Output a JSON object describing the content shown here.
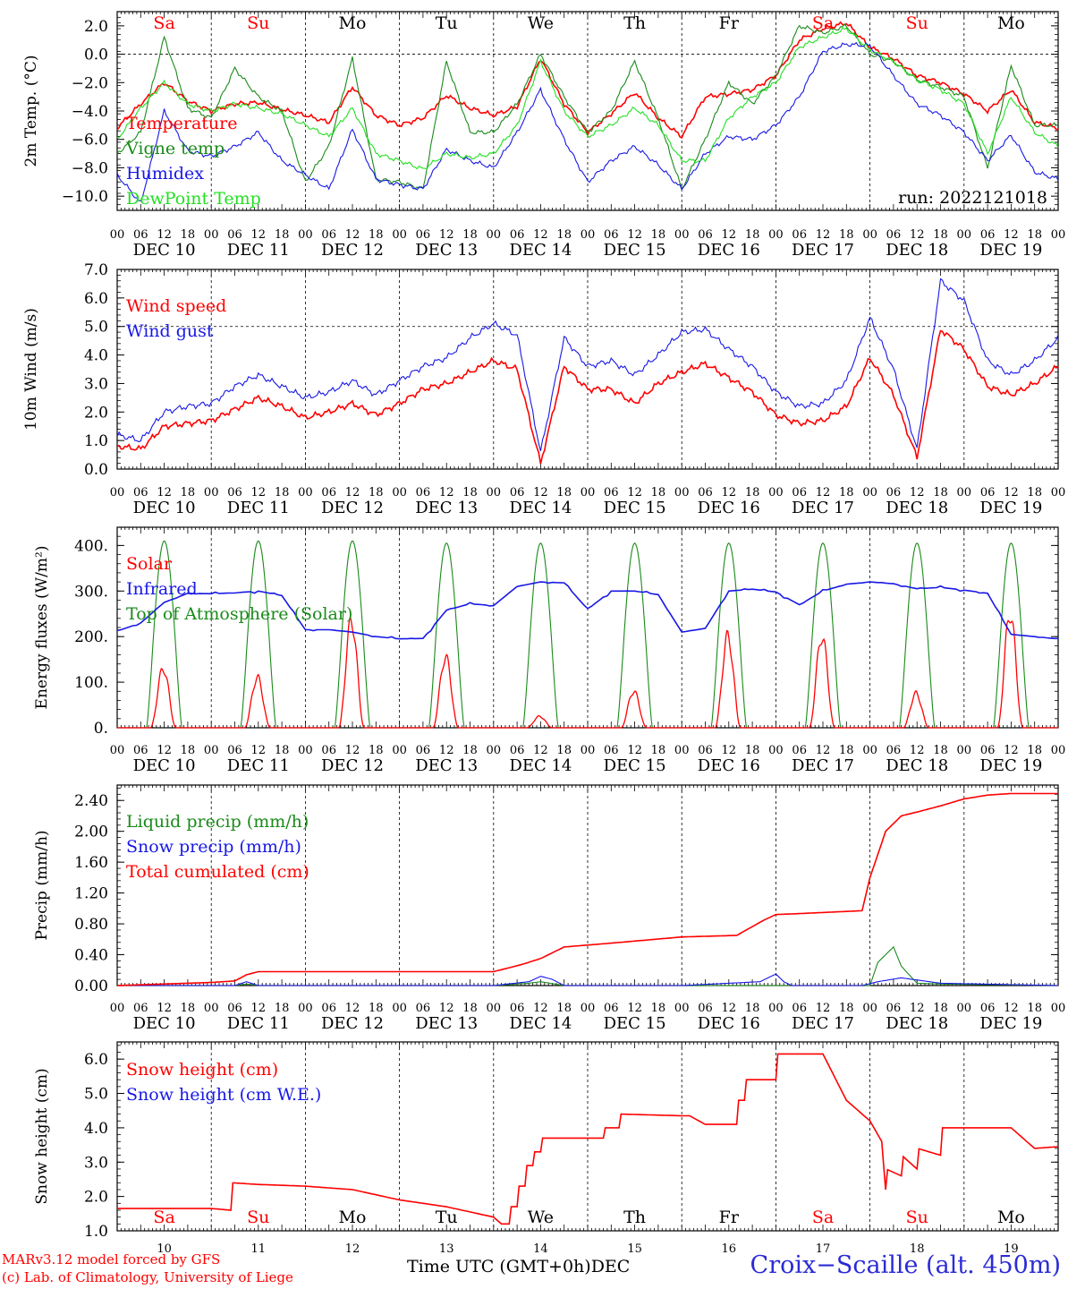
{
  "run_label": "run: 2022121018",
  "time_axis": {
    "hour_ticks": [
      "00",
      "06",
      "12",
      "18"
    ],
    "date_labels": [
      "DEC 10",
      "DEC 11",
      "DEC 12",
      "DEC 13",
      "DEC 14",
      "DEC 15",
      "DEC 16",
      "DEC 17",
      "DEC 18",
      "DEC 19"
    ],
    "weekdays": [
      "Sa",
      "Su",
      "Mo",
      "Tu",
      "We",
      "Th",
      "Fr",
      "Sa",
      "Su",
      "Mo"
    ],
    "weekend_flags": [
      true,
      true,
      false,
      false,
      false,
      false,
      false,
      true,
      true,
      false
    ],
    "day_numbers": [
      "10",
      "11",
      "12",
      "13",
      "14",
      "15",
      "16",
      "17",
      "18",
      "19"
    ],
    "xlabel": "Time UTC (GMT+0h)",
    "month": "DEC"
  },
  "footer": {
    "credit_line1": "MARv3.12 model forced by GFS",
    "credit_line2": "(c) Lab. of Climatology, University of Liege",
    "station": "Croix−Scaille (alt. 450m)"
  },
  "colors": {
    "red": "#ff0000",
    "blue": "#1818e6",
    "dark_green": "#1a8a1a",
    "light_green": "#22e022",
    "station_blue": "#2b2bd6"
  },
  "chart_data": [
    {
      "type": "line",
      "id": "temperature",
      "ylabel": "2m Temp. (°C)",
      "ylim": [
        -11,
        3
      ],
      "yticks": [
        "2.0",
        "0.0",
        "−2.0",
        "−4.0",
        "−6.0",
        "−8.0",
        "−10.0"
      ],
      "ytick_values": [
        2,
        0,
        -2,
        -4,
        -6,
        -8,
        -10
      ],
      "dashed_ref": [
        0
      ],
      "x_unit": "hours since DEC 10 00 UTC",
      "series": [
        {
          "name": "Temperature",
          "color": "red",
          "x": [
            0,
            6,
            12,
            18,
            24,
            30,
            36,
            42,
            48,
            54,
            60,
            66,
            72,
            78,
            84,
            90,
            96,
            102,
            108,
            114,
            120,
            126,
            132,
            138,
            144,
            150,
            156,
            162,
            168,
            174,
            180,
            186,
            192,
            198,
            204,
            210,
            216,
            222,
            228,
            234,
            240
          ],
          "y": [
            -5.2,
            -3.5,
            -2.0,
            -3.3,
            -4.0,
            -3.5,
            -3.4,
            -3.9,
            -4.3,
            -4.8,
            -2.3,
            -4.3,
            -5.0,
            -4.5,
            -2.9,
            -3.8,
            -4.3,
            -3.7,
            -0.3,
            -3.5,
            -5.5,
            -4.2,
            -2.7,
            -4.5,
            -5.8,
            -3.0,
            -2.8,
            -2.5,
            -1.5,
            1.0,
            1.8,
            2.2,
            0.5,
            -0.3,
            -1.5,
            -2.0,
            -2.8,
            -4.0,
            -2.5,
            -4.8,
            -5.2
          ]
        },
        {
          "name": "Vigne temp",
          "color": "dark_green",
          "x": [
            0,
            6,
            12,
            18,
            24,
            30,
            36,
            42,
            48,
            54,
            60,
            66,
            72,
            78,
            84,
            90,
            96,
            102,
            108,
            114,
            120,
            126,
            132,
            138,
            144,
            150,
            156,
            162,
            168,
            174,
            180,
            186,
            192,
            198,
            204,
            210,
            216,
            222,
            228,
            234,
            240
          ],
          "y": [
            -7.0,
            -5.5,
            1.2,
            -3.8,
            -4.5,
            -1.0,
            -3.0,
            -4.0,
            -9.0,
            -6.5,
            -0.3,
            -8.8,
            -9.0,
            -9.5,
            -0.5,
            -5.5,
            -5.5,
            -3.5,
            0.0,
            -3.0,
            -5.5,
            -4.0,
            -0.5,
            -4.5,
            -9.5,
            -6.0,
            -2.0,
            -3.5,
            -1.5,
            2.0,
            1.5,
            2.0,
            0.0,
            -0.5,
            -1.8,
            -2.3,
            -3.0,
            -8.0,
            -0.8,
            -5.0,
            -5.0
          ]
        },
        {
          "name": "Humidex",
          "color": "blue",
          "x": [
            0,
            6,
            12,
            18,
            24,
            30,
            36,
            42,
            48,
            54,
            60,
            66,
            72,
            78,
            84,
            90,
            96,
            102,
            108,
            114,
            120,
            126,
            132,
            138,
            144,
            150,
            156,
            162,
            168,
            174,
            180,
            186,
            192,
            198,
            204,
            210,
            216,
            222,
            228,
            234,
            240
          ],
          "y": [
            -8.5,
            -10.5,
            -4.0,
            -6.8,
            -7.2,
            -6.5,
            -5.5,
            -7.5,
            -8.5,
            -9.5,
            -5.3,
            -8.8,
            -9.2,
            -9.5,
            -6.7,
            -7.5,
            -8.0,
            -5.5,
            -2.5,
            -6.0,
            -9.0,
            -7.5,
            -6.5,
            -7.8,
            -9.5,
            -7.0,
            -5.8,
            -6.0,
            -5.0,
            -3.0,
            0.2,
            0.7,
            0.6,
            -1.5,
            -3.5,
            -4.3,
            -5.5,
            -7.5,
            -5.7,
            -8.3,
            -8.8
          ]
        },
        {
          "name": "DewPoint Temp",
          "color": "light_green",
          "x": [
            0,
            6,
            12,
            18,
            24,
            30,
            36,
            42,
            48,
            54,
            60,
            66,
            72,
            78,
            84,
            90,
            96,
            102,
            108,
            114,
            120,
            126,
            132,
            138,
            144,
            150,
            156,
            162,
            168,
            174,
            180,
            186,
            192,
            198,
            204,
            210,
            216,
            222,
            228,
            234,
            240
          ],
          "y": [
            -6.0,
            -3.8,
            -2.0,
            -3.5,
            -4.0,
            -3.5,
            -3.8,
            -4.2,
            -5.0,
            -5.8,
            -3.8,
            -7.0,
            -7.5,
            -8.1,
            -7.0,
            -7.3,
            -7.0,
            -5.0,
            -0.5,
            -4.0,
            -5.8,
            -5.0,
            -3.8,
            -5.0,
            -7.5,
            -7.5,
            -4.5,
            -3.0,
            -2.0,
            0.5,
            1.2,
            1.8,
            0.3,
            -0.5,
            -1.8,
            -2.5,
            -3.5,
            -7.0,
            -3.0,
            -5.5,
            -6.5
          ]
        }
      ]
    },
    {
      "type": "line",
      "id": "wind",
      "ylabel": "10m Wind (m/s)",
      "ylim": [
        0,
        7
      ],
      "yticks": [
        "7.0",
        "6.0",
        "5.0",
        "4.0",
        "3.0",
        "2.0",
        "1.0",
        "0.0"
      ],
      "ytick_values": [
        7,
        6,
        5,
        4,
        3,
        2,
        1,
        0
      ],
      "dashed_ref": [
        5
      ],
      "series": [
        {
          "name": "Wind speed",
          "color": "red",
          "x": [
            0,
            6,
            12,
            18,
            24,
            30,
            36,
            42,
            48,
            54,
            60,
            66,
            72,
            78,
            84,
            90,
            96,
            102,
            108,
            114,
            120,
            126,
            132,
            138,
            144,
            150,
            156,
            162,
            168,
            174,
            180,
            186,
            192,
            198,
            204,
            210,
            216,
            222,
            228,
            234,
            240
          ],
          "y": [
            0.8,
            0.7,
            1.5,
            1.6,
            1.7,
            2.1,
            2.5,
            2.2,
            1.8,
            2.0,
            2.3,
            1.9,
            2.3,
            2.8,
            3.0,
            3.4,
            3.8,
            3.5,
            0.2,
            3.6,
            2.8,
            2.8,
            2.3,
            3.0,
            3.4,
            3.7,
            3.2,
            2.7,
            1.9,
            1.6,
            1.7,
            2.2,
            3.9,
            2.6,
            0.4,
            4.9,
            4.2,
            2.9,
            2.6,
            3.0,
            3.6
          ]
        },
        {
          "name": "Wind gust",
          "color": "blue",
          "x": [
            0,
            6,
            12,
            18,
            24,
            30,
            36,
            42,
            48,
            54,
            60,
            66,
            72,
            78,
            84,
            90,
            96,
            102,
            108,
            114,
            120,
            126,
            132,
            138,
            144,
            150,
            156,
            162,
            168,
            174,
            180,
            186,
            192,
            198,
            204,
            210,
            216,
            222,
            228,
            234,
            240
          ],
          "y": [
            1.2,
            1.0,
            2.0,
            2.2,
            2.3,
            2.9,
            3.3,
            2.9,
            2.5,
            2.7,
            3.1,
            2.6,
            3.1,
            3.6,
            3.9,
            4.6,
            5.1,
            4.7,
            0.6,
            4.6,
            3.6,
            3.8,
            3.3,
            4.0,
            4.8,
            4.9,
            4.2,
            3.6,
            2.7,
            2.2,
            2.3,
            3.1,
            5.3,
            3.5,
            0.7,
            6.6,
            5.9,
            3.8,
            3.3,
            3.8,
            4.6
          ]
        }
      ]
    },
    {
      "type": "line",
      "id": "energy",
      "ylabel": "Energy fluxes (W/m²)",
      "ylim": [
        0,
        440
      ],
      "yticks": [
        "400.",
        "300.",
        "200.",
        "100.",
        "0."
      ],
      "ytick_values": [
        400,
        300,
        200,
        100,
        0
      ],
      "solar_peak": [
        130,
        110,
        235,
        155,
        25,
        80,
        200,
        200,
        75,
        250
      ],
      "toa_peak": [
        410,
        410,
        410,
        405,
        405,
        405,
        405,
        405,
        405,
        405
      ],
      "daylight_hours": [
        7.5,
        16.5
      ],
      "series": [
        {
          "name": "Solar",
          "color": "red"
        },
        {
          "name": "Infrared",
          "color": "blue",
          "x": [
            0,
            6,
            12,
            18,
            24,
            30,
            36,
            42,
            48,
            54,
            60,
            66,
            72,
            78,
            84,
            90,
            96,
            102,
            108,
            114,
            120,
            126,
            132,
            138,
            144,
            150,
            156,
            162,
            168,
            174,
            180,
            186,
            192,
            198,
            204,
            210,
            216,
            222,
            228,
            234,
            240
          ],
          "y": [
            212,
            230,
            275,
            295,
            294,
            296,
            300,
            290,
            215,
            215,
            210,
            200,
            195,
            196,
            258,
            272,
            268,
            310,
            320,
            318,
            260,
            300,
            300,
            292,
            210,
            218,
            300,
            304,
            298,
            270,
            300,
            315,
            320,
            316,
            305,
            308,
            302,
            295,
            205,
            200,
            195
          ]
        },
        {
          "name": "Top of Atmosphere (Solar)",
          "color": "dark_green"
        }
      ]
    },
    {
      "type": "line",
      "id": "precip",
      "ylabel": "Precip (mm/h)",
      "ylim": [
        0,
        2.6
      ],
      "yticks": [
        "2.40",
        "2.00",
        "1.60",
        "1.20",
        "0.80",
        "0.40",
        "0.00"
      ],
      "ytick_values": [
        2.4,
        2.0,
        1.6,
        1.2,
        0.8,
        0.4,
        0.0
      ],
      "series": [
        {
          "name": "Liquid precip (mm/h)",
          "color": "dark_green",
          "x": [
            0,
            30,
            33,
            36,
            96,
            105,
            108,
            114,
            144,
            168,
            192,
            194,
            198,
            200,
            204,
            210,
            240
          ],
          "y": [
            0,
            0,
            0.02,
            0,
            0,
            0.03,
            0.05,
            0,
            0,
            0,
            0,
            0.3,
            0.5,
            0.25,
            0.03,
            0.02,
            0
          ]
        },
        {
          "name": "Snow precip (mm/h)",
          "color": "blue",
          "x": [
            0,
            30,
            33,
            36,
            96,
            105,
            108,
            111,
            114,
            144,
            164,
            168,
            170,
            172,
            190,
            194,
            200,
            210,
            240
          ],
          "y": [
            0,
            0,
            0.05,
            0,
            0,
            0.05,
            0.12,
            0.08,
            0,
            0,
            0.05,
            0.15,
            0.05,
            0,
            0,
            0.05,
            0.1,
            0.03,
            0
          ]
        },
        {
          "name": "Total cumulated (cm)",
          "color": "red",
          "x": [
            0,
            24,
            30,
            33,
            36,
            96,
            103,
            108,
            114,
            126,
            144,
            158,
            165,
            168,
            190,
            192,
            196,
            200,
            204,
            210,
            216,
            222,
            228,
            240
          ],
          "y": [
            0,
            0.04,
            0.06,
            0.14,
            0.18,
            0.18,
            0.27,
            0.35,
            0.5,
            0.55,
            0.63,
            0.65,
            0.85,
            0.92,
            0.97,
            1.4,
            2.0,
            2.2,
            2.25,
            2.33,
            2.42,
            2.47,
            2.49,
            2.49
          ]
        }
      ]
    },
    {
      "type": "line",
      "id": "snow",
      "ylabel": "Snow height (cm)",
      "ylim": [
        1,
        6.5
      ],
      "yticks": [
        "6.0",
        "5.0",
        "4.0",
        "3.0",
        "2.0",
        "1.0"
      ],
      "ytick_values": [
        6,
        5,
        4,
        3,
        2,
        1
      ],
      "series": [
        {
          "name": "Snow height (cm)",
          "color": "red",
          "x": [
            0,
            12,
            24,
            29,
            29.1,
            36,
            48,
            60,
            72,
            84,
            96,
            98,
            100,
            100.1,
            102,
            102.1,
            104,
            104.1,
            106,
            106.1,
            108,
            108.1,
            112,
            120,
            124,
            124.1,
            128,
            128.1,
            144,
            146,
            150,
            150.1,
            156,
            158,
            158.1,
            160,
            160.1,
            168,
            168.1,
            174,
            180,
            186,
            192,
            195,
            196,
            196.1,
            200,
            200.1,
            204,
            204.1,
            210,
            210.1,
            216,
            228,
            234,
            240
          ],
          "y": [
            1.65,
            1.65,
            1.65,
            1.6,
            2.4,
            2.35,
            2.3,
            2.2,
            1.9,
            1.7,
            1.4,
            1.2,
            1.2,
            1.7,
            1.7,
            2.3,
            2.3,
            2.9,
            2.9,
            3.3,
            3.3,
            3.7,
            3.7,
            3.7,
            3.7,
            4.0,
            4.0,
            4.4,
            4.35,
            4.35,
            4.1,
            4.1,
            4.1,
            4.1,
            4.8,
            4.8,
            5.4,
            5.4,
            6.15,
            6.15,
            6.15,
            4.8,
            4.2,
            3.6,
            2.2,
            2.8,
            2.6,
            3.2,
            2.8,
            3.4,
            3.2,
            4.0,
            4.0,
            4.0,
            3.4,
            3.45
          ]
        },
        {
          "name": "Snow height (cm W.E.)",
          "color": "blue"
        }
      ]
    }
  ]
}
